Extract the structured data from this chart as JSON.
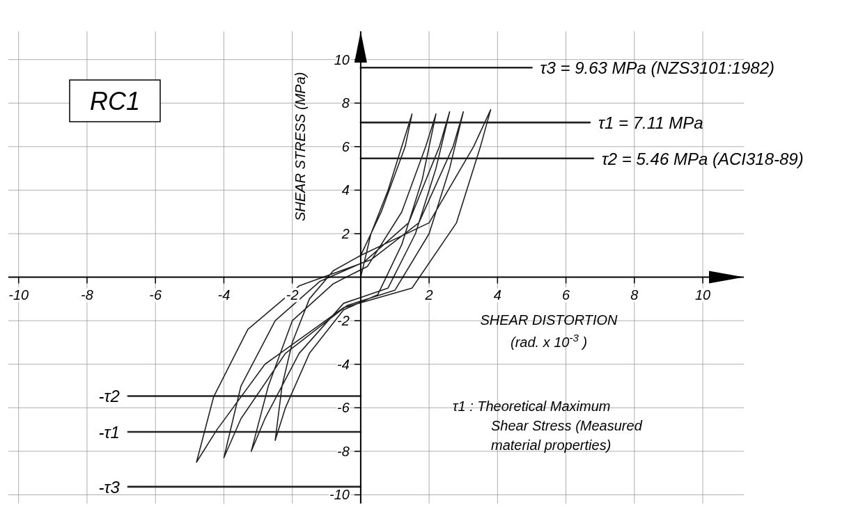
{
  "chart_data": {
    "type": "line",
    "title": "RC1",
    "xlabel": "SHEAR DISTORTION (rad. x 10$^{-3}$ )",
    "ylabel": "SHEAR STRESS (MPa)",
    "xlim": [
      -10.3,
      11.2
    ],
    "ylim": [
      -10.4,
      11.3
    ],
    "xticks": [
      -10,
      -8,
      -6,
      -4,
      -2,
      2,
      4,
      6,
      8,
      10
    ],
    "yticks": [
      -10,
      -8,
      -6,
      -4,
      -2,
      2,
      4,
      6,
      8,
      10
    ],
    "grid": true,
    "legend": false,
    "marker": "none",
    "line_style": "solid",
    "series": [
      {
        "color": "#222222",
        "x": [
          0,
          0.3,
          0.8,
          1.2,
          1.5,
          1.3,
          0.6,
          0,
          -0.8,
          -1.5,
          -2,
          -2.3,
          -2.5,
          -2.2,
          -1.5,
          -0.5,
          0.5,
          1.2,
          1.8,
          2.2,
          1.9,
          1.2,
          0.2,
          -0.8,
          -2,
          -2.7,
          -3.2,
          -2.8,
          -1.8,
          -0.5,
          0.8,
          1.6,
          2.2,
          2.6,
          2.3,
          1.4,
          0.1,
          -1.2,
          -2.5,
          -3.5,
          -4,
          -3.5,
          -2.2,
          -0.4,
          1,
          2,
          2.6,
          3,
          2.7,
          1.7,
          0.3,
          -1.8,
          -3.3,
          -4.3,
          -4.8,
          -4.2,
          -2.8,
          -0.5,
          1.5,
          2.8,
          3.5,
          3.8,
          3.3,
          2,
          0
        ],
        "values": [
          0,
          2,
          4,
          6,
          7.5,
          6,
          3,
          1,
          0.3,
          -1,
          -3,
          -5,
          -7.5,
          -6,
          -3.5,
          -1.5,
          -0.8,
          1.5,
          4.5,
          7.5,
          6,
          3,
          0.5,
          -0.3,
          -2,
          -5,
          -8,
          -6.5,
          -3.5,
          -1.2,
          -0.5,
          2,
          5,
          7.6,
          6,
          2.5,
          0.7,
          -0.2,
          -2,
          -5,
          -8.3,
          -6.5,
          -3.5,
          -1.3,
          -0.6,
          2,
          5,
          7.6,
          6,
          2.5,
          0.8,
          -0.4,
          -2.4,
          -5.5,
          -8.5,
          -7,
          -4,
          -1.4,
          -0.5,
          2.5,
          6,
          7.7,
          6,
          2.5,
          1
        ]
      },
      {
        "name": "τ3 = 9.63 MPa (NZS3101:1982)",
        "color": "#222222",
        "x": [
          0,
          5.0
        ],
        "values": [
          9.63,
          9.63
        ]
      },
      {
        "name": "τ1 = 7.11 MPa",
        "color": "#222222",
        "x": [
          0,
          6.7
        ],
        "values": [
          7.11,
          7.11
        ]
      },
      {
        "name": "τ2 = 5.46 MPa (ACI318-89)",
        "color": "#222222",
        "x": [
          0,
          6.8
        ],
        "values": [
          5.46,
          5.46
        ]
      },
      {
        "name": "-τ2",
        "color": "#222222",
        "x": [
          -6.8,
          0
        ],
        "values": [
          -5.46,
          -5.46
        ]
      },
      {
        "name": "-τ1",
        "color": "#222222",
        "x": [
          -6.8,
          0
        ],
        "values": [
          -7.11,
          -7.11
        ]
      },
      {
        "name": "-τ3",
        "color": "#222222",
        "x": [
          -6.8,
          0
        ],
        "values": [
          -9.63,
          -9.63
        ]
      }
    ],
    "annotations": [
      "τ1 : Theoretical Maximum Shear Stress (Measured material properties)"
    ]
  }
}
